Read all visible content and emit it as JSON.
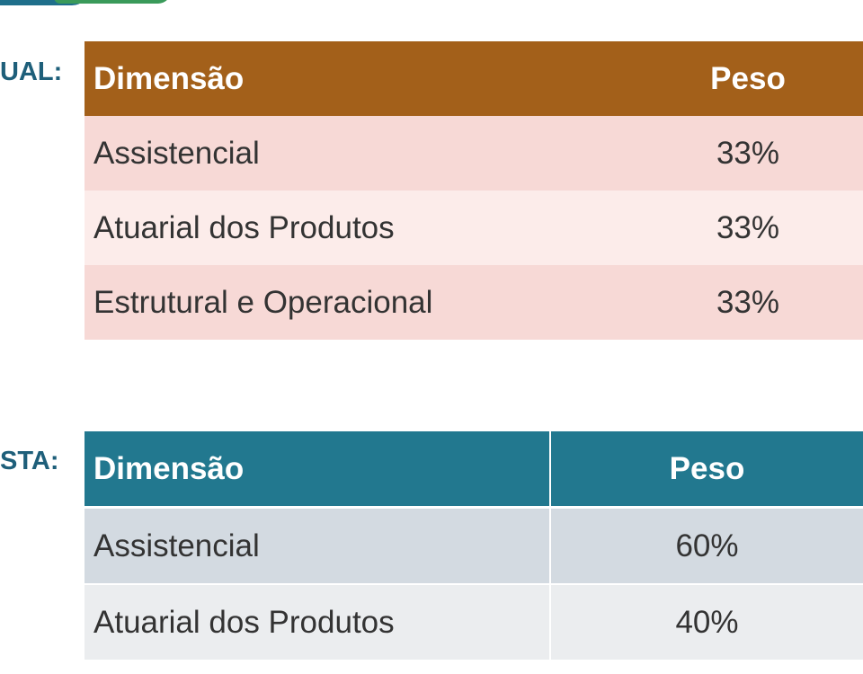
{
  "tables": {
    "atual": {
      "label": "UAL:",
      "header": {
        "dimensao": "Dimensão",
        "peso": "Peso"
      },
      "rows": [
        {
          "dimensao": "Assistencial",
          "peso": "33%"
        },
        {
          "dimensao": "Atuarial dos Produtos",
          "peso": "33%"
        },
        {
          "dimensao": "Estrutural e Operacional",
          "peso": "33%"
        }
      ]
    },
    "proposta": {
      "label": "STA:",
      "header": {
        "dimensao": "Dimensão",
        "peso": "Peso"
      },
      "rows": [
        {
          "dimensao": "Assistencial",
          "peso": "60%"
        },
        {
          "dimensao": "Atuarial dos Produtos",
          "peso": "40%"
        }
      ]
    }
  },
  "colors": {
    "atual_header": "#a3601a",
    "atual_row_odd": "#f7d9d6",
    "atual_row_even": "#fcecea",
    "proposta_header": "#22788f",
    "proposta_row_odd": "#d3dae1",
    "proposta_row_even": "#ebedef",
    "label_text": "#1e5f7a"
  }
}
